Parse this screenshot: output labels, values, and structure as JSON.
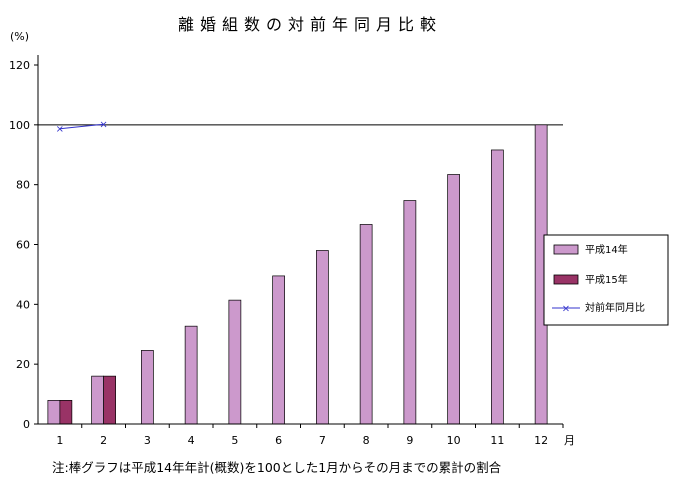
{
  "chart_data": {
    "type": "bar",
    "title": "離婚組数の対前年同月比較",
    "y_unit_label": "(%)",
    "x_unit_label": "月",
    "categories": [
      "1",
      "2",
      "3",
      "4",
      "5",
      "6",
      "7",
      "8",
      "9",
      "10",
      "11",
      "12"
    ],
    "ylim": [
      0,
      120
    ],
    "yticks": [
      0,
      20,
      40,
      60,
      80,
      100,
      120
    ],
    "grid": false,
    "legend_position": "right",
    "series": [
      {
        "name": "平成14年",
        "kind": "bar",
        "color": "#cc99cc",
        "values": [
          7.9,
          16.0,
          24.6,
          32.7,
          41.4,
          49.5,
          58.0,
          66.7,
          74.7,
          83.4,
          91.6,
          100
        ]
      },
      {
        "name": "平成15年",
        "kind": "bar",
        "color": "#993366",
        "values": [
          7.9,
          16.0,
          null,
          null,
          null,
          null,
          null,
          null,
          null,
          null,
          null,
          null
        ]
      },
      {
        "name": "対前年同月比",
        "kind": "line",
        "color": "#3333cc",
        "values": [
          98.7,
          100.2,
          null,
          null,
          null,
          null,
          null,
          null,
          null,
          null,
          null,
          null
        ]
      }
    ],
    "reference_line": 100,
    "footnote": "注:棒グラフは平成14年年計(概数)を100とした1月からその月までの累計の割合"
  }
}
